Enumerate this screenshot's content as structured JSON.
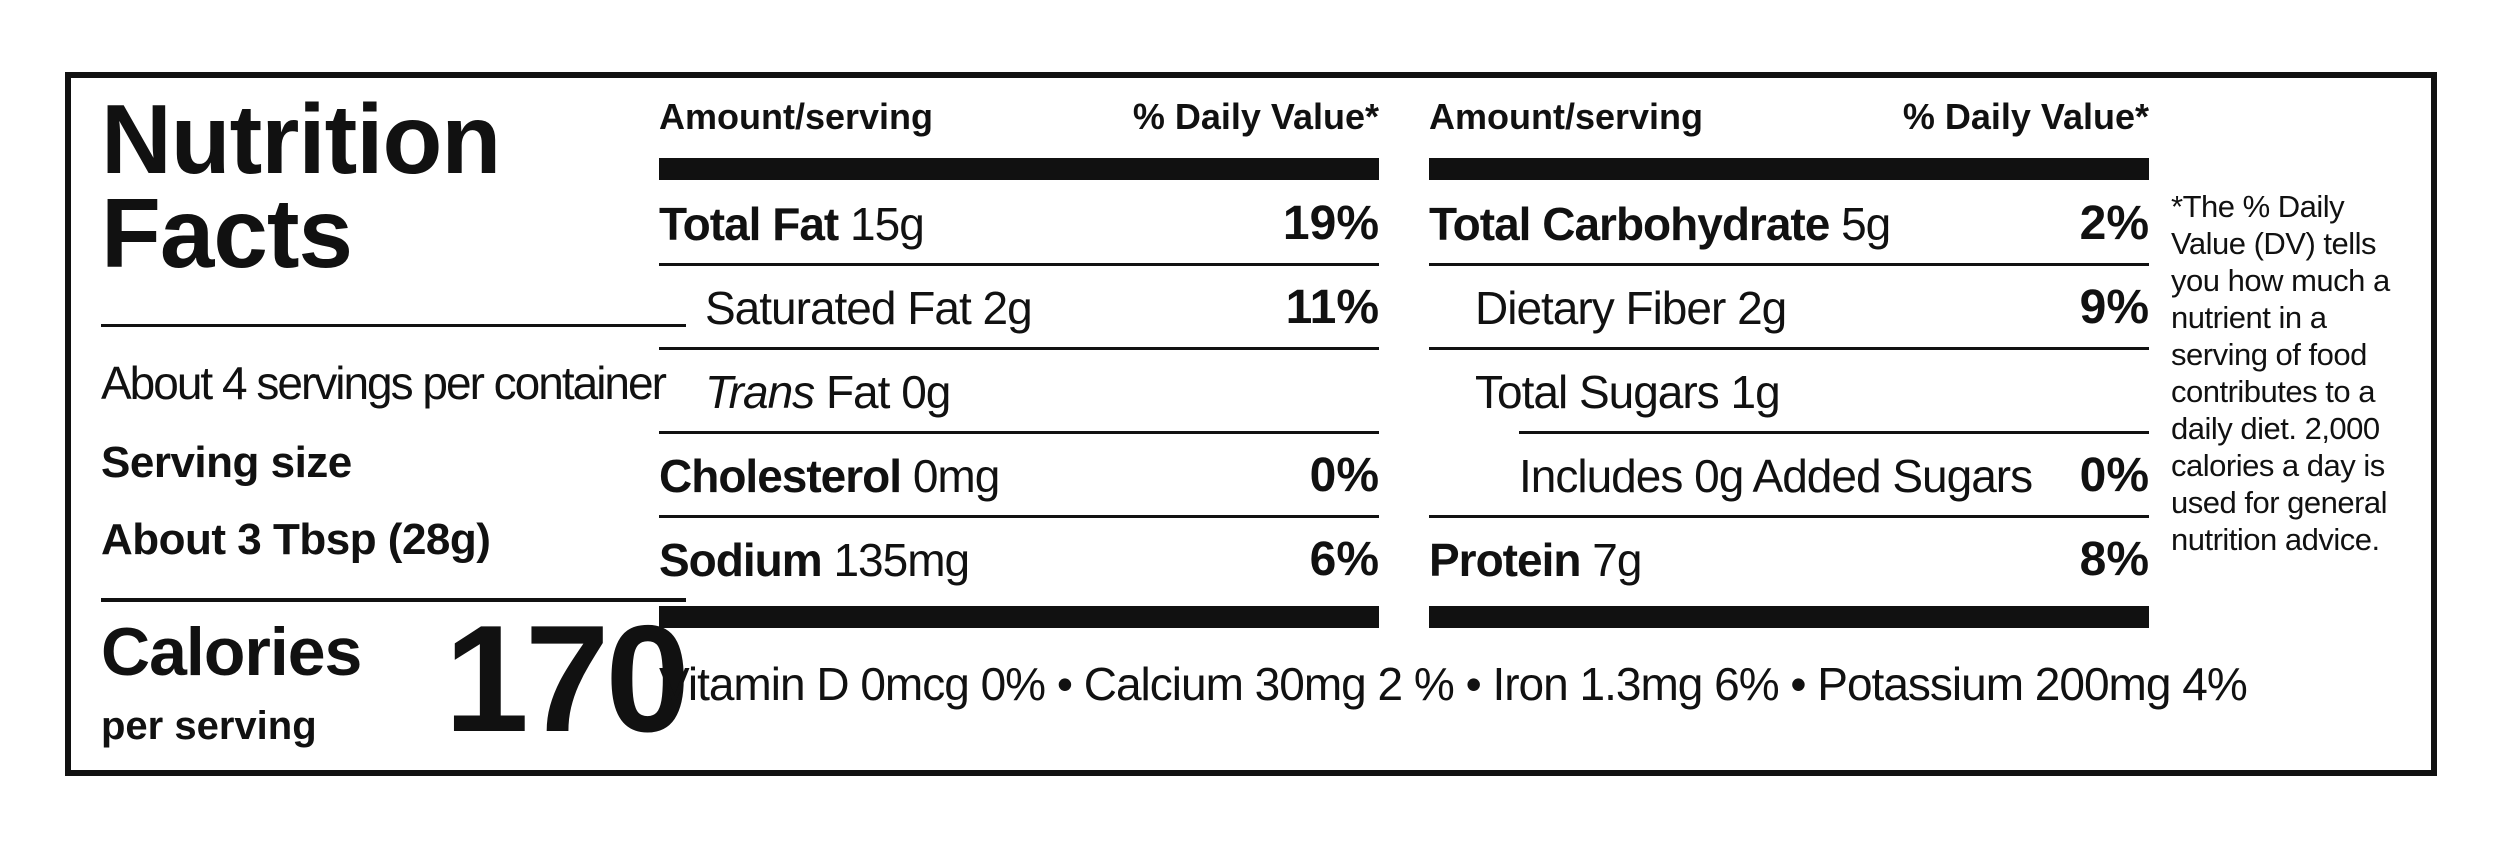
{
  "title": [
    "Nutrition",
    "Facts"
  ],
  "servings_per_container": "About 4 servings per container",
  "serving_size_label": "Serving size",
  "serving_size_value": "About 3 Tbsp (28g)",
  "calories": {
    "label": "Calories",
    "sub": "per serving",
    "value": "170"
  },
  "table_left": {
    "header_amount": "Amount/serving",
    "header_dv": "% Daily Value*",
    "rows": [
      {
        "name": "Total Fat",
        "amount": "15g",
        "dv": "19%"
      },
      {
        "name": "Saturated Fat",
        "amount": "2g",
        "dv": "11%"
      },
      {
        "name": "Trans",
        "name_rest": "Fat",
        "amount": "0g",
        "dv": ""
      },
      {
        "name": "Cholesterol",
        "amount": "0mg",
        "dv": "0%"
      },
      {
        "name": "Sodium",
        "amount": "135mg",
        "dv": "6%"
      }
    ]
  },
  "table_right": {
    "header_amount": "Amount/serving",
    "header_dv": "% Daily Value*",
    "rows": [
      {
        "name": "Total Carbohydrate",
        "amount": "5g",
        "dv": "2%"
      },
      {
        "name": "Dietary Fiber",
        "amount": "2g",
        "dv": "9%"
      },
      {
        "name": "Total Sugars",
        "amount": "1g",
        "dv": ""
      },
      {
        "name": "Includes",
        "amount": "0g",
        "name_rest": "Added Sugars",
        "dv": "0%"
      },
      {
        "name": "Protein",
        "amount": "7g",
        "dv": "8%"
      }
    ]
  },
  "vitamins_line": "Vitamin D 0mcg 0% • Calcium 30mg 2 % • Iron  1.3mg 6% • Potassium 200mg  4%",
  "footnote": "*The % Daily Value (DV) tells you how much a nutrient in a serving of food contributes to a daily diet. 2,000 calories a day is used for general nutrition advice."
}
